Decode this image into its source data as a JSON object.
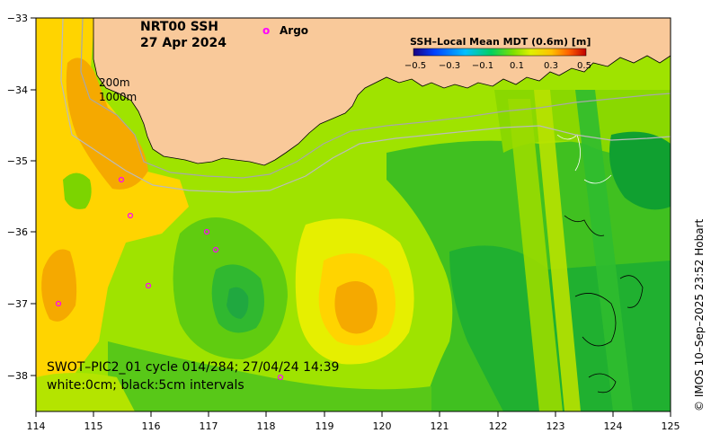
{
  "title": {
    "product": "NRT00 SSH",
    "date": "27 Apr 2024"
  },
  "legend": {
    "marker_symbol": "o",
    "marker_label": "Argo",
    "marker_color": "#ff00ff"
  },
  "colorbar": {
    "title": "SSH–Local Mean MDT (0.6m) [m]",
    "ticks": [
      "−0.5",
      "−0.3",
      "−0.1",
      "0.1",
      "0.3",
      "0.5"
    ],
    "colors": [
      "#1a0080",
      "#0040ff",
      "#00c0ff",
      "#00d060",
      "#80e000",
      "#e0f000",
      "#ffc000",
      "#ff6000",
      "#c00000"
    ]
  },
  "isobaths": {
    "shallow": "200m",
    "deep": "1000m"
  },
  "swath": {
    "caption": "SWOT–PIC2_01 cycle 014/284; 27/04/24 14:39",
    "contours": "white:0cm; black:5cm intervals"
  },
  "credit": "© IMOS 10–Sep–2025 23:52 Hobart",
  "axes": {
    "x_ticks": [
      "114",
      "115",
      "116",
      "117",
      "118",
      "119",
      "120",
      "121",
      "122",
      "123",
      "124",
      "125"
    ],
    "y_ticks": [
      "−33",
      "−34",
      "−35",
      "−36",
      "−37",
      "−38"
    ]
  },
  "colors": {
    "land": "#f9c99a",
    "ocean_base": "#9fe300",
    "high_anomaly": "#f5a900",
    "mid_anomaly": "#ffd400",
    "low_anomaly": "#20b020"
  }
}
